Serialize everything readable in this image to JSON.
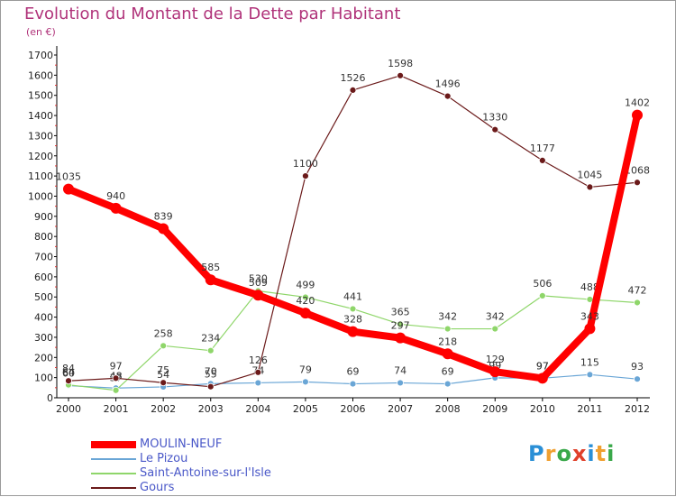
{
  "chart_data": {
    "type": "line",
    "title": "Evolution du Montant de la Dette par Habitant",
    "subtitle": "(en €)",
    "x": [
      "2000",
      "2001",
      "2002",
      "2003",
      "2004",
      "2005",
      "2006",
      "2007",
      "2008",
      "2009",
      "2010",
      "2011",
      "2012"
    ],
    "ylim": [
      0,
      1700
    ],
    "yticks": [
      0,
      100,
      200,
      300,
      400,
      500,
      600,
      700,
      800,
      900,
      1000,
      1100,
      1200,
      1300,
      1400,
      1500,
      1600,
      1700
    ],
    "grid": false,
    "legend_position": "bottom-left",
    "series": [
      {
        "name": "MOULIN-NEUF",
        "color": "#ff0000",
        "values": [
          1035,
          940,
          839,
          585,
          509,
          420,
          328,
          297,
          218,
          129,
          97,
          343,
          1402
        ]
      },
      {
        "name": "Le Pizou",
        "color": "#6aa6d6",
        "values": [
          60,
          48,
          54,
          70,
          74,
          79,
          69,
          74,
          69,
          99,
          97,
          115,
          93
        ]
      },
      {
        "name": "Saint-Antoine-sur-l'Isle",
        "color": "#8fd66a",
        "values": [
          64,
          37,
          258,
          234,
          530,
          499,
          441,
          365,
          342,
          342,
          506,
          488,
          472
        ]
      },
      {
        "name": "Gours",
        "color": "#6b1a1a",
        "values": [
          84,
          97,
          75,
          55,
          126,
          1100,
          1526,
          1598,
          1496,
          1330,
          1177,
          1045,
          1068
        ]
      }
    ]
  },
  "logo": {
    "text": "Proxiti"
  },
  "colors": {
    "title": "#b0337a",
    "legend_text": "#4a58c8"
  }
}
